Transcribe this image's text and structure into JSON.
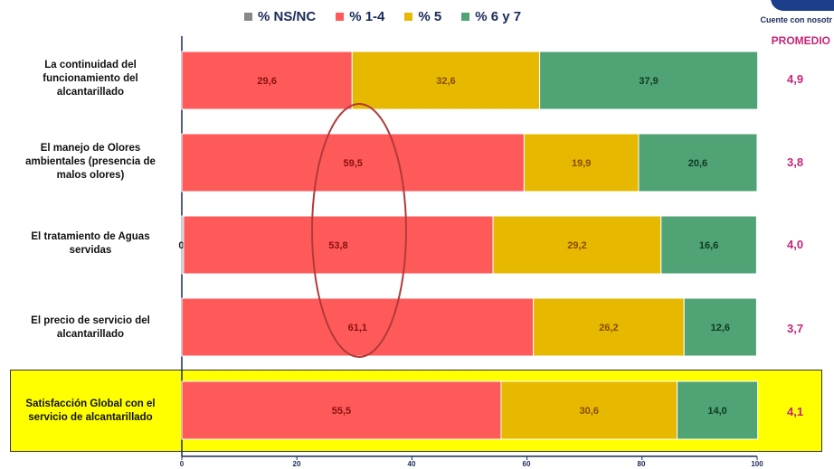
{
  "legend": [
    {
      "label": "% NS/NC",
      "color": "#888888"
    },
    {
      "label": "% 1-4",
      "color": "#ff5a5a"
    },
    {
      "label": "% 5",
      "color": "#e6b800"
    },
    {
      "label": "% 6 y 7",
      "color": "#4fa374"
    }
  ],
  "logo": {
    "tagline": "Cuente con nosotr"
  },
  "promedio_label": "PROMEDIO",
  "chart_data": {
    "type": "bar",
    "orientation": "horizontal",
    "stacked": true,
    "categories": [
      "La continuidad del funcionamiento del alcantarillado",
      "El manejo de Olores ambientales (presencia de malos olores)",
      "El tratamiento de Aguas servidas",
      "El precio de servicio del alcantarillado",
      "Satisfacción Global con el servicio de alcantarillado"
    ],
    "series": [
      {
        "name": "% NS/NC",
        "values": [
          0,
          0,
          0.3,
          0,
          0
        ],
        "labels": [
          "",
          "",
          "0,3",
          "",
          ""
        ],
        "color": "#9a9a9a"
      },
      {
        "name": "% 1-4",
        "values": [
          29.6,
          59.5,
          53.8,
          61.1,
          55.5
        ],
        "labels": [
          "29,6",
          "59,5",
          "53,8",
          "61,1",
          "55,5"
        ],
        "color": "#ff5a5a"
      },
      {
        "name": "% 5",
        "values": [
          32.6,
          19.9,
          29.2,
          26.2,
          30.6
        ],
        "labels": [
          "32,6",
          "19,9",
          "29,2",
          "26,2",
          "30,6"
        ],
        "color": "#e6b800"
      },
      {
        "name": "% 6 y 7",
        "values": [
          37.9,
          20.6,
          16.6,
          12.6,
          14.0
        ],
        "labels": [
          "37,9",
          "20,6",
          "16,6",
          "12,6",
          "14,0"
        ],
        "color": "#4fa374"
      }
    ],
    "averages": [
      "4,9",
      "3,8",
      "4,0",
      "3,7",
      "4,1"
    ],
    "xticks": [
      "0",
      "20",
      "40",
      "60",
      "80",
      "100"
    ],
    "xlim": [
      0,
      100
    ],
    "highlighted_category": 4
  }
}
